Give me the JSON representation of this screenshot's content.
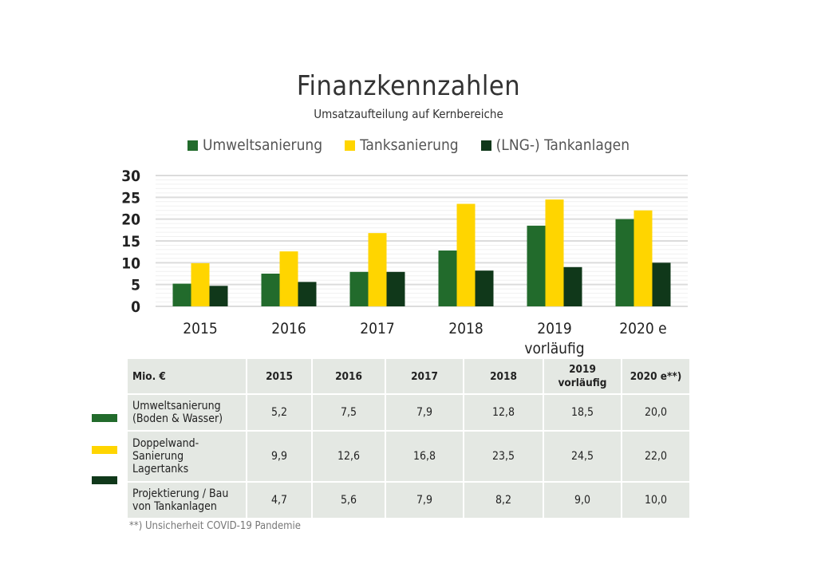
{
  "chart_data": {
    "type": "bar",
    "title": "Finanzkennzahlen",
    "subtitle": "Umsatzaufteilung auf Kernbereiche",
    "categories": [
      "2015",
      "2016",
      "2017",
      "2018",
      "2019",
      "2020 e"
    ],
    "category_sublabels": [
      "",
      "",
      "",
      "",
      "vorläufig",
      ""
    ],
    "series": [
      {
        "name": "Umweltsanierung",
        "color": "#226b2c",
        "values": [
          5.2,
          7.5,
          7.9,
          12.8,
          18.5,
          20.0
        ]
      },
      {
        "name": "Tanksanierung",
        "color": "#ffd500",
        "values": [
          9.9,
          12.6,
          16.8,
          23.5,
          24.5,
          22.0
        ]
      },
      {
        "name": "(LNG-) Tankanlagen",
        "color": "#10381a",
        "values": [
          4.7,
          5.6,
          7.9,
          8.2,
          9.0,
          10.0
        ]
      }
    ],
    "ylim": [
      0,
      30
    ],
    "yticks": [
      "0",
      "5",
      "10",
      "15",
      "20",
      "25",
      "30"
    ],
    "grid": true,
    "legend": "top-center",
    "xlabel": "",
    "ylabel": ""
  },
  "table": {
    "headers": [
      "Mio. €",
      "2015",
      "2016",
      "2017",
      "2018",
      "2019",
      "2020 e**)"
    ],
    "header_sub": {
      "2019": "vorläufig"
    },
    "rows": [
      {
        "label": [
          "Umweltsanierung",
          "(Boden & Wasser)"
        ],
        "values": [
          "5,2",
          "7,5",
          "7,9",
          "12,8",
          "18,5",
          "20,0"
        ]
      },
      {
        "label": [
          "Doppelwand-",
          "Sanierung",
          "Lagertanks"
        ],
        "values": [
          "9,9",
          "12,6",
          "16,8",
          "23,5",
          "24,5",
          "22,0"
        ]
      },
      {
        "label": [
          "Projektierung / Bau",
          "von Tankanlagen"
        ],
        "values": [
          "4,7",
          "5,6",
          "7,9",
          "8,2",
          "9,0",
          "10,0"
        ]
      }
    ],
    "footnote": "**) Unsicherheit COVID-19 Pandemie"
  }
}
